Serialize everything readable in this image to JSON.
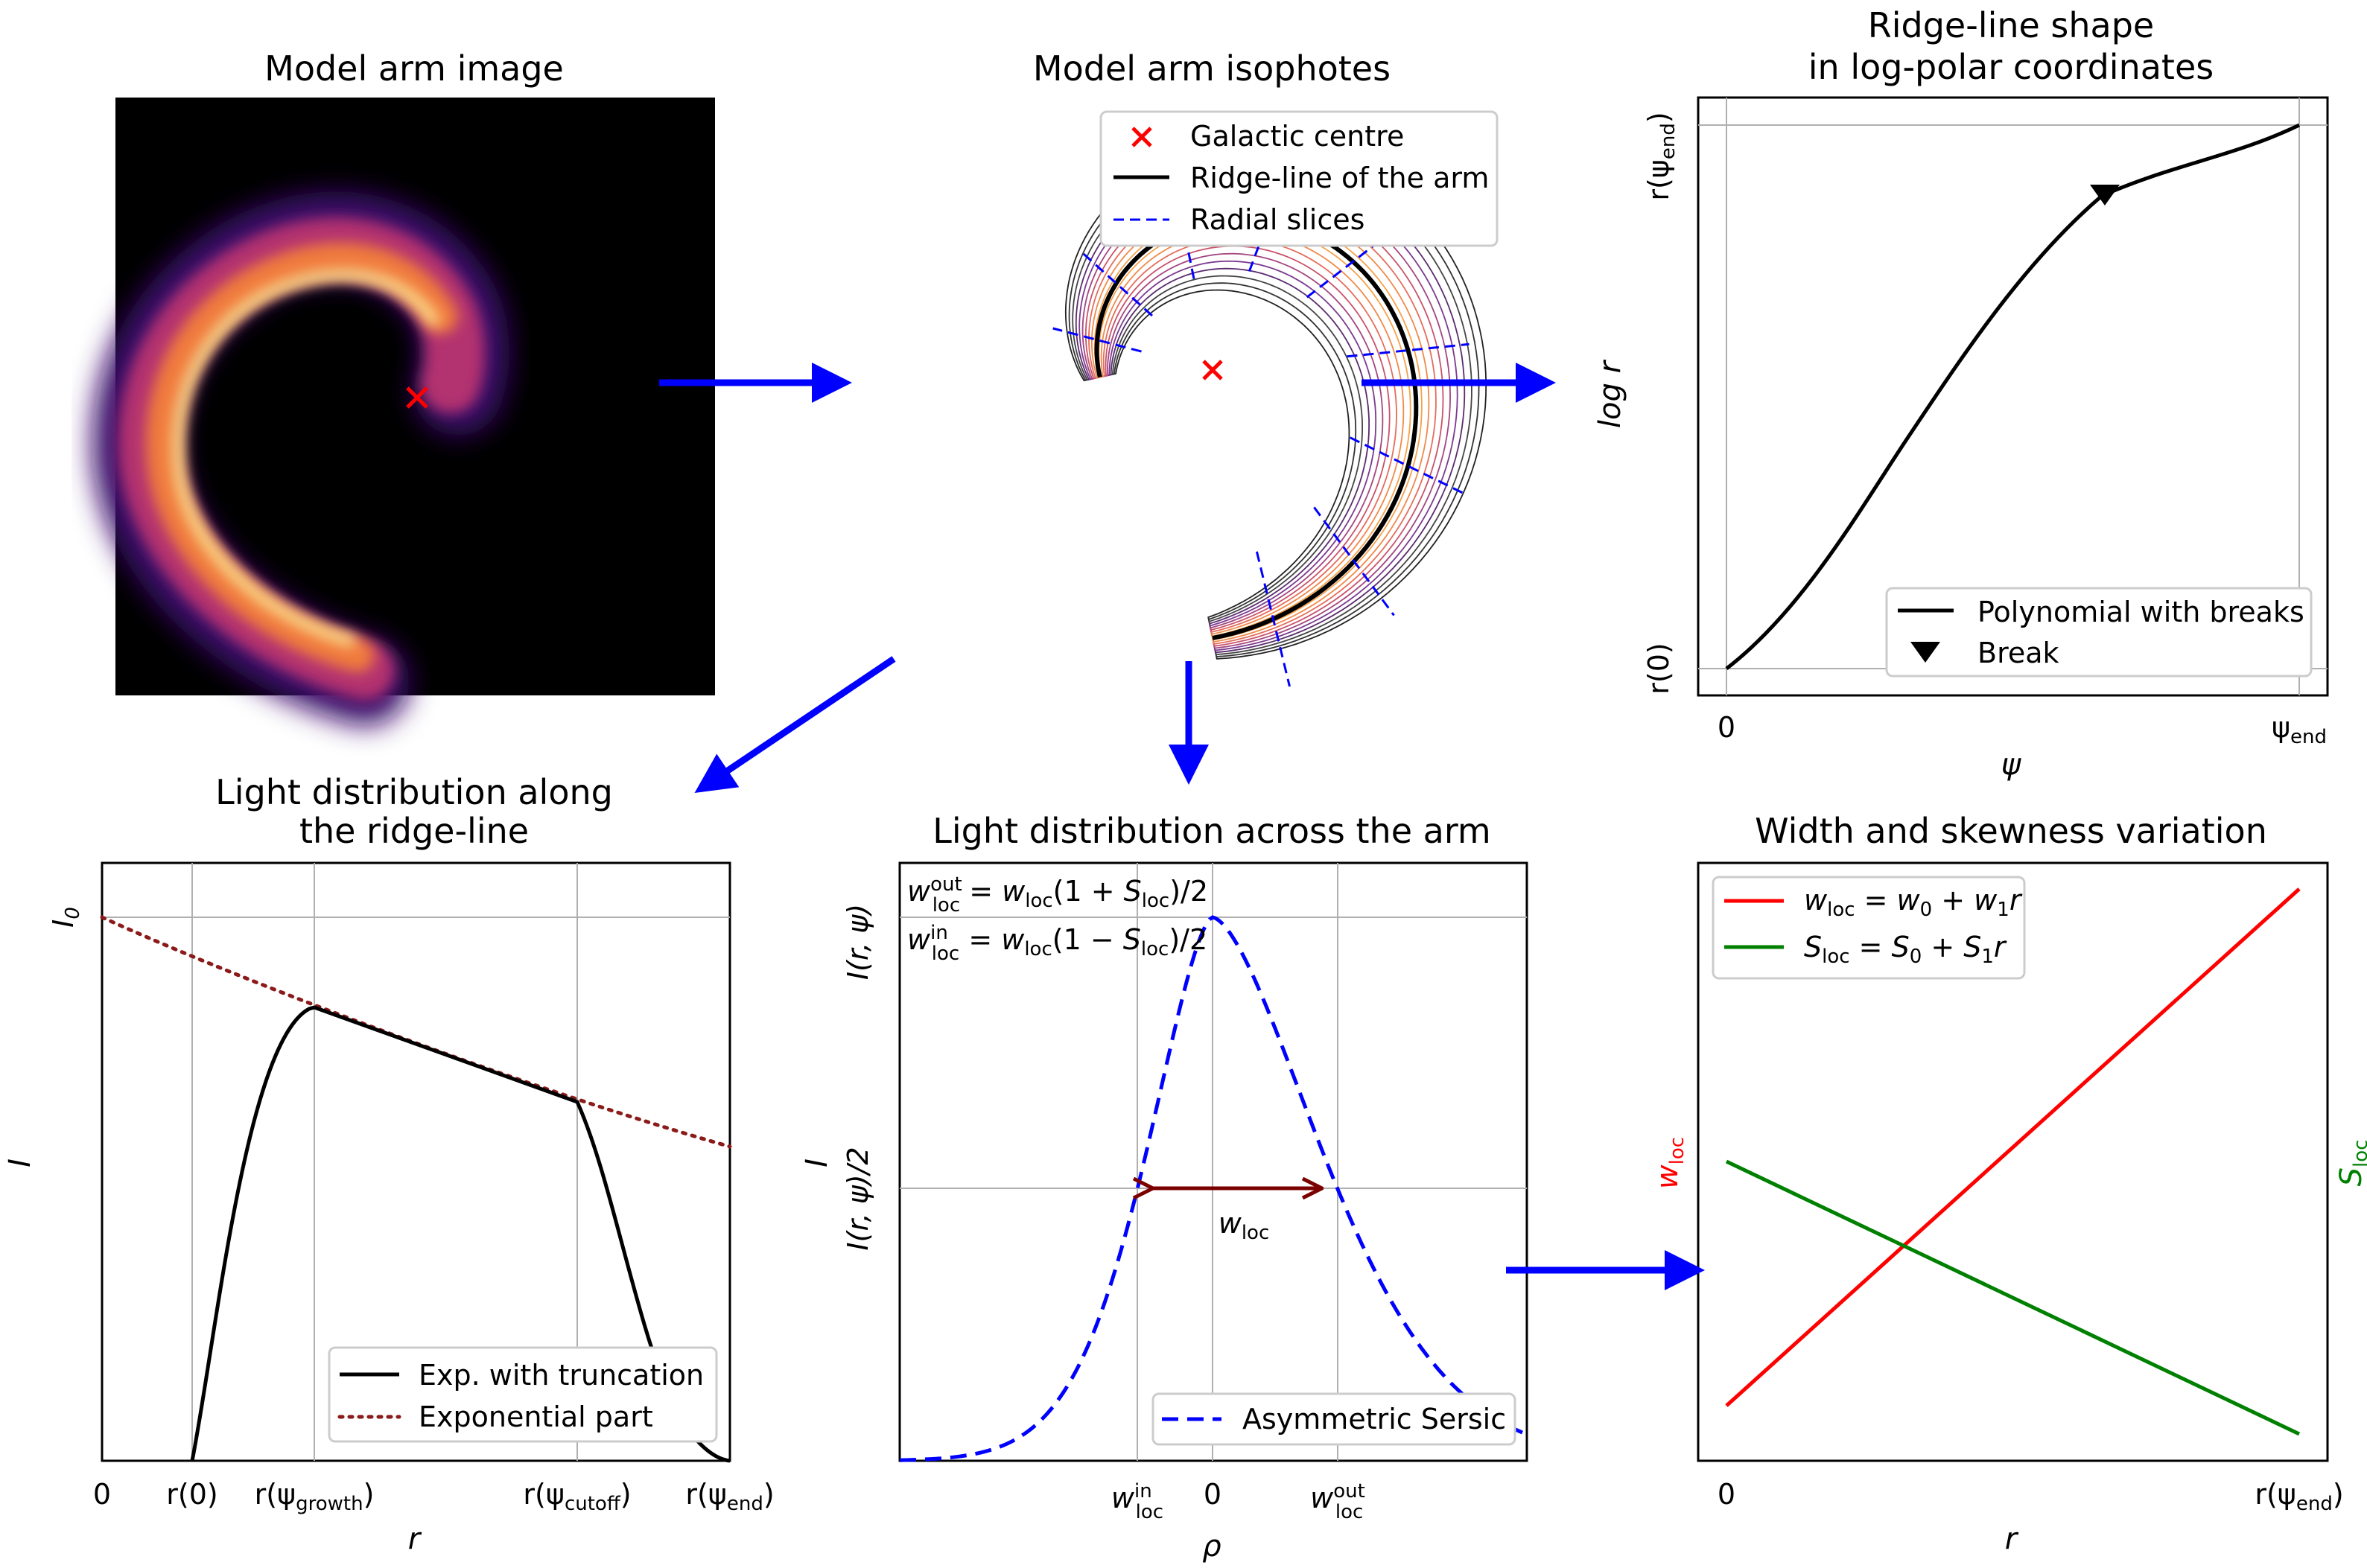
{
  "panels": {
    "arm_image": {
      "title": "Model arm image"
    },
    "isophotes": {
      "title": "Model arm isophotes",
      "legend": [
        "Galactic centre",
        "Ridge-line of the arm",
        "Radial slices"
      ]
    },
    "ridge_shape": {
      "title_line1": "Ridge-line shape",
      "title_line2": "in log-polar coordinates",
      "xlabel": "ψ",
      "ylabel": "log r",
      "xticks": [
        "0",
        "ψend"
      ],
      "yticks": [
        "r(0)",
        "r(ψend)"
      ],
      "legend": [
        "Polynomial with breaks",
        "Break"
      ]
    },
    "along_ridge": {
      "title_line1": "Light distribution along",
      "title_line2": "the ridge-line",
      "xlabel": "r",
      "ylabel": "I",
      "xticks": [
        "0",
        "r(0)",
        "r(ψgrowth)",
        "r(ψcutoff)",
        "r(ψend)"
      ],
      "yticks": [
        "I0"
      ],
      "legend": [
        "Exp. with truncation",
        "Exponential part"
      ]
    },
    "across_arm": {
      "title": "Light distribution across the arm",
      "xlabel": "ρ",
      "ylabel": "I",
      "xticks": [
        "w_loc^in",
        "0",
        "w_loc^out"
      ],
      "yticks": [
        "I(r, ψ)",
        "I(r, ψ)/2"
      ],
      "eq_out": "w_loc^out = w_loc(1 + S_loc)/2",
      "eq_in": "w_loc^in = w_loc(1 − S_loc)/2",
      "arrow_label": "w_loc",
      "legend": [
        "Asymmetric Sersic"
      ]
    },
    "width_skew": {
      "title": "Width and skewness variation",
      "xlabel": "r",
      "ylabel_left": "w_loc",
      "ylabel_right": "S_loc",
      "xticks": [
        "0",
        "r(ψend)"
      ],
      "legend": [
        "w_loc = w_0 + w_1 r",
        "S_loc = S_0 + S_1 r"
      ]
    }
  },
  "colors": {
    "flow_arrow": "#0000ff",
    "centre_marker": "#ff0000",
    "exp_dotted": "#8b1a1a",
    "sersic": "#0000ff",
    "width_line": "#ff0000",
    "skew_line": "#008000",
    "arrow_dark": "#7a0000"
  }
}
